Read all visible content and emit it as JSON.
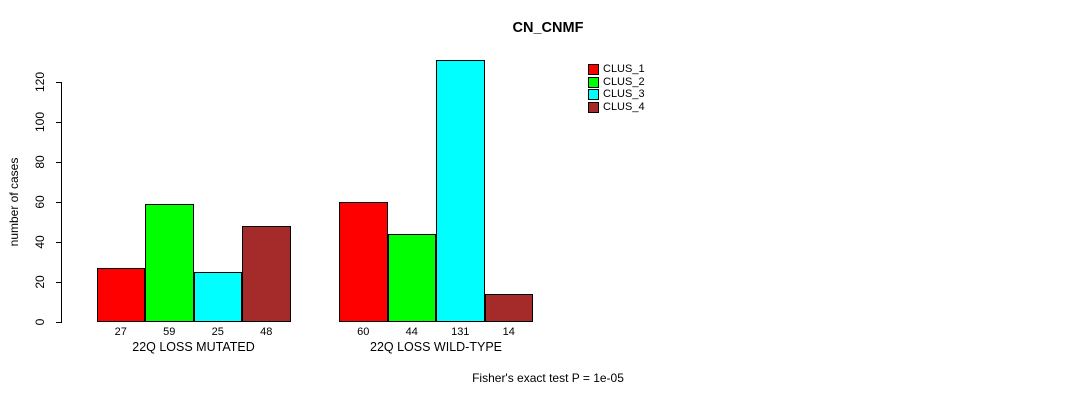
{
  "chart_data": {
    "type": "bar",
    "title": "CN_CNMF",
    "xlabel": "",
    "ylabel": "number of cases",
    "annotation": "Fisher's exact test P = 1e-05",
    "categories": [
      "22Q LOSS MUTATED",
      "22Q LOSS WILD-TYPE"
    ],
    "series": [
      {
        "name": "CLUS_1",
        "color": "#FF0000",
        "values": [
          27,
          60
        ]
      },
      {
        "name": "CLUS_2",
        "color": "#00FF00",
        "values": [
          59,
          44
        ]
      },
      {
        "name": "CLUS_3",
        "color": "#00FFFF",
        "values": [
          25,
          131
        ]
      },
      {
        "name": "CLUS_4",
        "color": "#A52A2A",
        "values": [
          48,
          14
        ]
      }
    ],
    "y_ticks": [
      0,
      20,
      40,
      60,
      80,
      100,
      120
    ],
    "ylim": [
      0,
      131
    ],
    "bar_value_labels_shown": true,
    "legend_position": "top-right-inside",
    "grid": false,
    "background_color": "#FFFFFF",
    "axis_color": "#000000"
  }
}
